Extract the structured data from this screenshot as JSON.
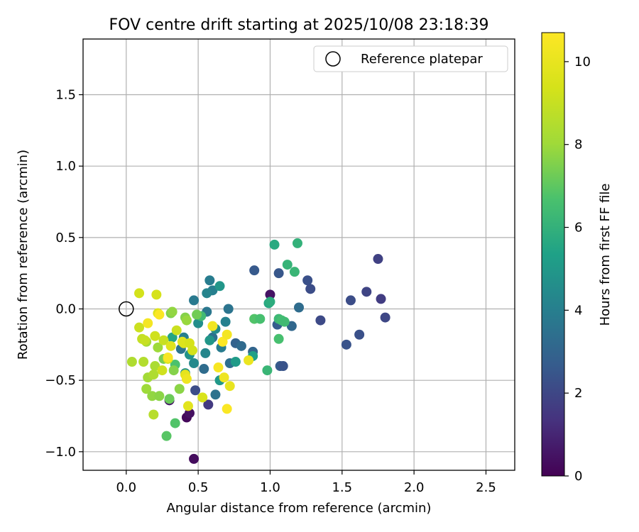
{
  "chart_data": {
    "type": "scatter",
    "title": "FOV centre drift starting at 2025/10/08 23:18:39",
    "xlabel": "Angular distance from reference (arcmin)",
    "ylabel": "Rotation from reference (arcmin)",
    "xlim": [
      -0.3,
      2.7
    ],
    "ylim": [
      -1.13,
      1.89
    ],
    "xticks": [
      0.0,
      0.5,
      1.0,
      1.5,
      2.0,
      2.5
    ],
    "xtick_labels": [
      "0.0",
      "0.5",
      "1.0",
      "1.5",
      "2.0",
      "2.5"
    ],
    "yticks": [
      -1.0,
      -0.5,
      0.0,
      0.5,
      1.0,
      1.5
    ],
    "ytick_labels": [
      "−1.0",
      "−0.5",
      "0.0",
      "0.5",
      "1.0",
      "1.5"
    ],
    "grid": true,
    "legend": {
      "label": "Reference platepar",
      "position": "top-right"
    },
    "reference_point": {
      "x": 0.0,
      "y": 0.0
    },
    "colorbar": {
      "label": "Hours from first FF file",
      "min": 0,
      "max": 10.7,
      "ticks": [
        0,
        2,
        4,
        6,
        8,
        10
      ],
      "tick_labels": [
        "0",
        "2",
        "4",
        "6",
        "8",
        "10"
      ],
      "colormap": "viridis"
    },
    "points": [
      {
        "x": 0.47,
        "y": -1.05,
        "c": 0.3
      },
      {
        "x": 0.42,
        "y": -0.76,
        "c": 0.2
      },
      {
        "x": 0.44,
        "y": -0.73,
        "c": 0.4
      },
      {
        "x": 0.3,
        "y": -0.64,
        "c": 0.6
      },
      {
        "x": 1.0,
        "y": 0.1,
        "c": 0.5
      },
      {
        "x": 0.57,
        "y": -0.67,
        "c": 1.6
      },
      {
        "x": 0.48,
        "y": -0.57,
        "c": 2.2
      },
      {
        "x": 1.07,
        "y": -0.4,
        "c": 2.6
      },
      {
        "x": 1.09,
        "y": -0.4,
        "c": 2.4
      },
      {
        "x": 1.75,
        "y": 0.35,
        "c": 1.8
      },
      {
        "x": 1.67,
        "y": 0.12,
        "c": 1.9
      },
      {
        "x": 1.77,
        "y": 0.07,
        "c": 1.7
      },
      {
        "x": 1.8,
        "y": -0.06,
        "c": 2.0
      },
      {
        "x": 1.56,
        "y": 0.06,
        "c": 2.2
      },
      {
        "x": 1.62,
        "y": -0.18,
        "c": 2.3
      },
      {
        "x": 1.53,
        "y": -0.25,
        "c": 2.4
      },
      {
        "x": 1.35,
        "y": -0.08,
        "c": 2.1
      },
      {
        "x": 1.26,
        "y": 0.2,
        "c": 2.3
      },
      {
        "x": 1.28,
        "y": 0.14,
        "c": 2.2
      },
      {
        "x": 1.06,
        "y": 0.25,
        "c": 2.5
      },
      {
        "x": 0.89,
        "y": 0.27,
        "c": 2.6
      },
      {
        "x": 1.05,
        "y": -0.11,
        "c": 2.7
      },
      {
        "x": 1.15,
        "y": -0.12,
        "c": 3.1
      },
      {
        "x": 1.2,
        "y": 0.01,
        "c": 3.3
      },
      {
        "x": 0.88,
        "y": -0.3,
        "c": 3.0
      },
      {
        "x": 0.72,
        "y": -0.38,
        "c": 3.4
      },
      {
        "x": 0.76,
        "y": -0.24,
        "c": 2.9
      },
      {
        "x": 0.8,
        "y": -0.26,
        "c": 3.2
      },
      {
        "x": 0.71,
        "y": 0.0,
        "c": 3.6
      },
      {
        "x": 0.62,
        "y": -0.6,
        "c": 3.5
      },
      {
        "x": 0.54,
        "y": -0.42,
        "c": 3.3
      },
      {
        "x": 0.58,
        "y": 0.2,
        "c": 3.9
      },
      {
        "x": 0.6,
        "y": 0.13,
        "c": 4.0
      },
      {
        "x": 0.56,
        "y": 0.11,
        "c": 4.2
      },
      {
        "x": 0.65,
        "y": 0.16,
        "c": 4.9
      },
      {
        "x": 0.47,
        "y": 0.06,
        "c": 3.8
      },
      {
        "x": 0.56,
        "y": -0.02,
        "c": 3.7
      },
      {
        "x": 0.6,
        "y": -0.2,
        "c": 3.5
      },
      {
        "x": 0.66,
        "y": -0.27,
        "c": 3.9
      },
      {
        "x": 0.69,
        "y": -0.09,
        "c": 4.1
      },
      {
        "x": 0.55,
        "y": -0.31,
        "c": 4.3
      },
      {
        "x": 0.62,
        "y": -0.14,
        "c": 4.5
      },
      {
        "x": 0.5,
        "y": -0.1,
        "c": 4.6
      },
      {
        "x": 0.47,
        "y": -0.38,
        "c": 4.4
      },
      {
        "x": 0.4,
        "y": -0.2,
        "c": 4.0
      },
      {
        "x": 0.38,
        "y": -0.28,
        "c": 3.6
      },
      {
        "x": 0.44,
        "y": -0.32,
        "c": 4.8
      },
      {
        "x": 0.41,
        "y": -0.45,
        "c": 4.7
      },
      {
        "x": 0.58,
        "y": -0.22,
        "c": 4.9
      },
      {
        "x": 0.65,
        "y": -0.5,
        "c": 5.0
      },
      {
        "x": 0.76,
        "y": -0.37,
        "c": 5.1
      },
      {
        "x": 0.88,
        "y": -0.33,
        "c": 5.3
      },
      {
        "x": 0.99,
        "y": 0.04,
        "c": 5.6
      },
      {
        "x": 1.0,
        "y": 0.05,
        "c": 5.8
      },
      {
        "x": 1.03,
        "y": 0.45,
        "c": 5.7
      },
      {
        "x": 1.19,
        "y": 0.46,
        "c": 6.0
      },
      {
        "x": 1.12,
        "y": 0.31,
        "c": 6.1
      },
      {
        "x": 1.17,
        "y": 0.26,
        "c": 6.2
      },
      {
        "x": 1.06,
        "y": -0.07,
        "c": 6.3
      },
      {
        "x": 1.08,
        "y": -0.08,
        "c": 6.5
      },
      {
        "x": 1.1,
        "y": -0.09,
        "c": 6.4
      },
      {
        "x": 1.06,
        "y": -0.21,
        "c": 6.6
      },
      {
        "x": 0.98,
        "y": -0.43,
        "c": 6.2
      },
      {
        "x": 0.89,
        "y": -0.07,
        "c": 6.8
      },
      {
        "x": 0.93,
        "y": -0.07,
        "c": 6.6
      },
      {
        "x": 0.52,
        "y": -0.05,
        "c": 6.4
      },
      {
        "x": 0.34,
        "y": -0.39,
        "c": 6.7
      },
      {
        "x": 0.32,
        "y": -0.2,
        "c": 5.5
      },
      {
        "x": 0.28,
        "y": -0.89,
        "c": 6.9
      },
      {
        "x": 0.34,
        "y": -0.8,
        "c": 6.8
      },
      {
        "x": 0.3,
        "y": -0.63,
        "c": 7.2
      },
      {
        "x": 0.31,
        "y": -0.03,
        "c": 7.5
      },
      {
        "x": 0.32,
        "y": -0.02,
        "c": 7.8
      },
      {
        "x": 0.41,
        "y": -0.06,
        "c": 7.6
      },
      {
        "x": 0.42,
        "y": -0.08,
        "c": 7.9
      },
      {
        "x": 0.49,
        "y": -0.04,
        "c": 7.3
      },
      {
        "x": 0.37,
        "y": -0.56,
        "c": 7.7
      },
      {
        "x": 0.26,
        "y": -0.35,
        "c": 7.4
      },
      {
        "x": 0.33,
        "y": -0.43,
        "c": 7.6
      },
      {
        "x": 0.22,
        "y": -0.27,
        "c": 8.0
      },
      {
        "x": 0.14,
        "y": -0.23,
        "c": 8.2
      },
      {
        "x": 0.2,
        "y": -0.4,
        "c": 8.3
      },
      {
        "x": 0.12,
        "y": -0.37,
        "c": 8.5
      },
      {
        "x": 0.15,
        "y": -0.48,
        "c": 8.1
      },
      {
        "x": 0.14,
        "y": -0.56,
        "c": 8.0
      },
      {
        "x": 0.19,
        "y": -0.46,
        "c": 8.4
      },
      {
        "x": 0.18,
        "y": -0.61,
        "c": 7.8
      },
      {
        "x": 0.23,
        "y": -0.61,
        "c": 7.7
      },
      {
        "x": 0.19,
        "y": -0.74,
        "c": 8.6
      },
      {
        "x": 0.04,
        "y": -0.37,
        "c": 8.4
      },
      {
        "x": 0.11,
        "y": -0.21,
        "c": 8.9
      },
      {
        "x": 0.13,
        "y": -0.22,
        "c": 9.0
      },
      {
        "x": 0.09,
        "y": -0.13,
        "c": 9.1
      },
      {
        "x": 0.09,
        "y": 0.11,
        "c": 9.3
      },
      {
        "x": 0.21,
        "y": 0.1,
        "c": 9.4
      },
      {
        "x": 0.2,
        "y": -0.19,
        "c": 9.2
      },
      {
        "x": 0.22,
        "y": -0.03,
        "c": 9.6
      },
      {
        "x": 0.26,
        "y": -0.22,
        "c": 9.0
      },
      {
        "x": 0.25,
        "y": -0.43,
        "c": 9.2
      },
      {
        "x": 0.29,
        "y": -0.35,
        "c": 9.5
      },
      {
        "x": 0.31,
        "y": -0.26,
        "c": 9.7
      },
      {
        "x": 0.35,
        "y": -0.15,
        "c": 9.1
      },
      {
        "x": 0.39,
        "y": -0.23,
        "c": 9.8
      },
      {
        "x": 0.4,
        "y": -0.24,
        "c": 9.6
      },
      {
        "x": 0.44,
        "y": -0.24,
        "c": 9.4
      },
      {
        "x": 0.46,
        "y": -0.29,
        "c": 9.3
      },
      {
        "x": 0.41,
        "y": -0.46,
        "c": 9.9
      },
      {
        "x": 0.42,
        "y": -0.49,
        "c": 10.2
      },
      {
        "x": 0.43,
        "y": -0.68,
        "c": 9.8
      },
      {
        "x": 0.53,
        "y": -0.62,
        "c": 9.5
      },
      {
        "x": 0.23,
        "y": -0.04,
        "c": 10.6
      },
      {
        "x": 0.15,
        "y": -0.1,
        "c": 10.4
      },
      {
        "x": 0.6,
        "y": -0.12,
        "c": 10.3
      },
      {
        "x": 0.64,
        "y": -0.41,
        "c": 10.5
      },
      {
        "x": 0.67,
        "y": -0.23,
        "c": 10.7
      },
      {
        "x": 0.7,
        "y": -0.18,
        "c": 10.4
      },
      {
        "x": 0.68,
        "y": -0.48,
        "c": 10.2
      },
      {
        "x": 0.72,
        "y": -0.54,
        "c": 10.0
      },
      {
        "x": 0.7,
        "y": -0.7,
        "c": 10.6
      },
      {
        "x": 0.85,
        "y": -0.36,
        "c": 10.1
      },
      {
        "x": 0.29,
        "y": -0.34,
        "c": 10.5
      }
    ]
  }
}
